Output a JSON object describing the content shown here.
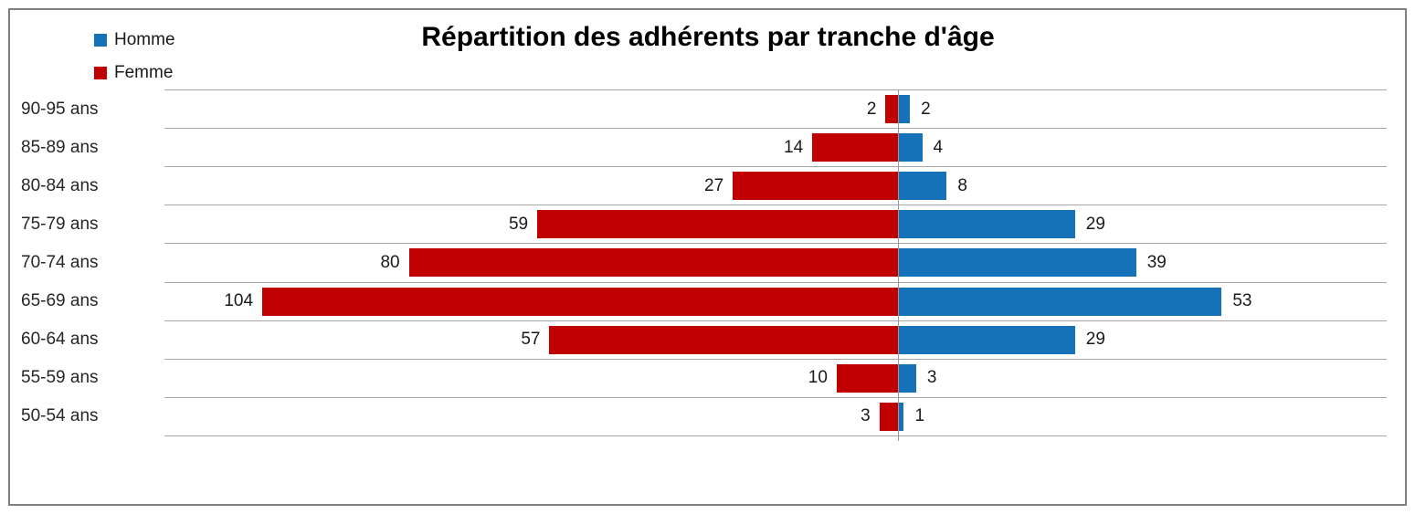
{
  "chart": {
    "title": "Répartition des adhérents par tranche d'âge",
    "legend": [
      {
        "label": "Homme",
        "color": "#1572b8"
      },
      {
        "label": "Femme",
        "color": "#c00000"
      }
    ]
  },
  "chart_data": {
    "type": "bar",
    "subtype": "population-pyramid",
    "orientation": "horizontal",
    "title": "Répartition des adhérents par tranche d'âge",
    "categories": [
      "90-95 ans",
      "85-89 ans",
      "80-84 ans",
      "75-79 ans",
      "70-74 ans",
      "65-69 ans",
      "60-64 ans",
      "55-59 ans",
      "50-54 ans"
    ],
    "series": [
      {
        "name": "Homme",
        "side": "right",
        "color": "#1572b8",
        "values": [
          2,
          4,
          8,
          29,
          39,
          53,
          29,
          3,
          1
        ]
      },
      {
        "name": "Femme",
        "side": "left",
        "color": "#c00000",
        "values": [
          2,
          14,
          27,
          59,
          80,
          104,
          57,
          10,
          3
        ]
      }
    ],
    "xlim": [
      -120,
      80
    ],
    "grid": "horizontal-row-lines",
    "gridline_color": "#a6a6a6",
    "legend_position": "top-left",
    "data_labels": "absolute-values-outside-bar-ends"
  }
}
